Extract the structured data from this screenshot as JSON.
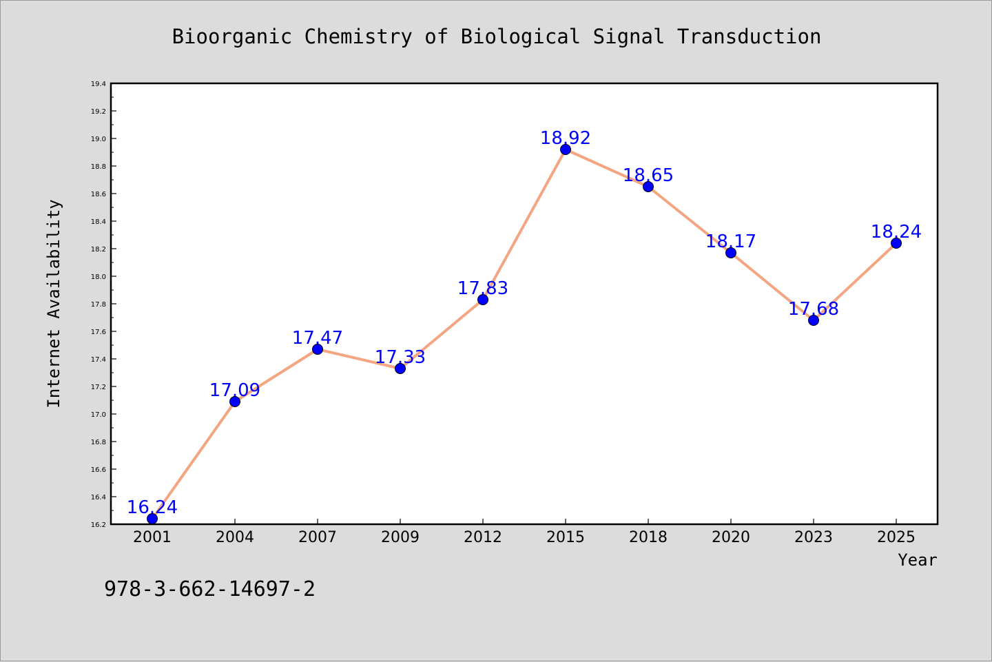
{
  "chart_data": {
    "type": "line",
    "title": "Bioorganic Chemistry of Biological Signal Transduction",
    "xlabel": "Year",
    "ylabel": "Internet Availability",
    "categories": [
      "2001",
      "2004",
      "2007",
      "2009",
      "2012",
      "2015",
      "2018",
      "2020",
      "2023",
      "2025"
    ],
    "series": [
      {
        "values": [
          16.24,
          17.09,
          17.47,
          17.33,
          17.83,
          18.92,
          18.65,
          18.17,
          17.68,
          18.24
        ],
        "labels": [
          "16.24",
          "17.09",
          "17.47",
          "17.33",
          "17.83",
          "18.92",
          "18.65",
          "18.17",
          "17.68",
          "18.24"
        ]
      }
    ],
    "ylim": [
      16.2,
      19.4
    ],
    "yticks": [
      "16.2",
      "16.4",
      "16.6",
      "16.8",
      "17.0",
      "17.2",
      "17.4",
      "17.6",
      "17.8",
      "18.0",
      "18.2",
      "18.4",
      "18.6",
      "18.8",
      "19.0",
      "19.2",
      "19.4"
    ],
    "grid": false,
    "legend": "none",
    "colors": {
      "line": "#f4a582",
      "marker": "#0000ff",
      "labels": "#0000ff",
      "plot_background": "#ffffff",
      "figure_background": "#dcdcdc"
    }
  },
  "footer": {
    "isbn": "978-3-662-14697-2"
  }
}
